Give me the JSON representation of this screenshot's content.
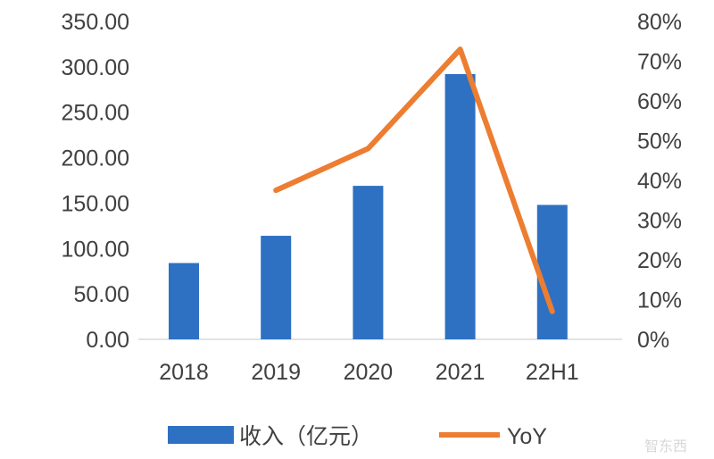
{
  "chart_data": {
    "type": "bar+line",
    "categories": [
      "2018",
      "2019",
      "2020",
      "2021",
      "22H1"
    ],
    "series": [
      {
        "name": "收入（亿元）",
        "type": "bar",
        "axis": "left",
        "color": "#2E71C2",
        "values": [
          84,
          114,
          169,
          292,
          148
        ]
      },
      {
        "name": "YoY",
        "type": "line",
        "axis": "right",
        "color": "#ED7D31",
        "values": [
          null,
          37.5,
          48,
          73,
          7
        ]
      }
    ],
    "left_axis": {
      "min": 0,
      "max": 350,
      "step": 50,
      "tick_labels": [
        "0.00",
        "50.00",
        "100.00",
        "150.00",
        "200.00",
        "250.00",
        "300.00",
        "350.00"
      ]
    },
    "right_axis": {
      "min": 0,
      "max": 80,
      "step": 10,
      "unit": "%",
      "tick_labels": [
        "0%",
        "10%",
        "20%",
        "30%",
        "40%",
        "50%",
        "60%",
        "70%",
        "80%"
      ]
    },
    "grid": false,
    "legend": "bottom",
    "watermark": "智东西"
  }
}
